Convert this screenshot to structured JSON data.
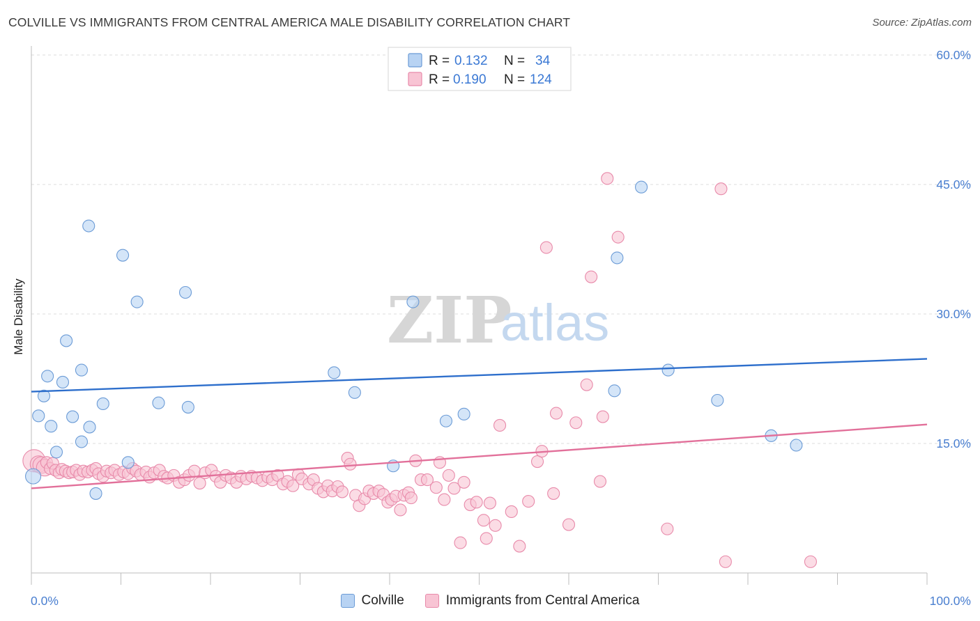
{
  "header": {
    "title": "COLVILLE VS IMMIGRANTS FROM CENTRAL AMERICA MALE DISABILITY CORRELATION CHART",
    "source": "Source: ZipAtlas.com"
  },
  "watermark": {
    "zip": "ZIP",
    "atlas": "atlas"
  },
  "colors": {
    "colville_fill": "#b8d3f3",
    "colville_stroke": "#6b9bd6",
    "colville_line": "#2e6fcc",
    "immigrants_fill": "#f8c4d4",
    "immigrants_stroke": "#e88aaa",
    "immigrants_line": "#e2709a",
    "tick_label": "#4a7fd0",
    "grid": "#dcdcdc"
  },
  "legend": {
    "r_label": "R =",
    "n_label": "N =",
    "rows": [
      {
        "series": "Colville",
        "r": "0.132",
        "n": "34"
      },
      {
        "series": "Immigrants from Central America",
        "r": "0.190",
        "n": "124"
      }
    ]
  },
  "chart_data": {
    "type": "scatter",
    "title": "COLVILLE VS IMMIGRANTS FROM CENTRAL AMERICA MALE DISABILITY CORRELATION CHART",
    "xlabel": "",
    "ylabel": "Male Disability",
    "xlim": [
      0,
      100
    ],
    "ylim": [
      0,
      60
    ],
    "x_tick_labels": [
      "0.0%",
      "100.0%"
    ],
    "y_ticks": [
      15,
      30,
      45,
      60
    ],
    "y_tick_labels": [
      "15.0%",
      "30.0%",
      "45.0%",
      "60.0%"
    ],
    "grid": "horizontal dashed",
    "legend_position": "top-center",
    "series": [
      {
        "name": "Colville",
        "r": 0.132,
        "n": 34,
        "trend": {
          "x": [
            0,
            100
          ],
          "y": [
            21.0,
            24.8
          ]
        },
        "points": [
          [
            0.2,
            11.2
          ],
          [
            0.8,
            18.2
          ],
          [
            1.4,
            20.5
          ],
          [
            1.8,
            22.8
          ],
          [
            2.2,
            17.0
          ],
          [
            2.8,
            14.0
          ],
          [
            3.5,
            22.1
          ],
          [
            3.9,
            26.9
          ],
          [
            4.6,
            18.1
          ],
          [
            5.6,
            23.5
          ],
          [
            5.6,
            15.2
          ],
          [
            6.5,
            16.9
          ],
          [
            6.4,
            40.2
          ],
          [
            7.2,
            9.2
          ],
          [
            8.0,
            19.6
          ],
          [
            10.2,
            36.8
          ],
          [
            10.8,
            12.8
          ],
          [
            11.8,
            31.4
          ],
          [
            14.2,
            19.7
          ],
          [
            17.2,
            32.5
          ],
          [
            17.5,
            19.2
          ],
          [
            33.8,
            23.2
          ],
          [
            36.1,
            20.9
          ],
          [
            40.4,
            12.4
          ],
          [
            42.6,
            31.4
          ],
          [
            46.3,
            17.6
          ],
          [
            48.3,
            18.4
          ],
          [
            65.4,
            36.5
          ],
          [
            65.1,
            21.1
          ],
          [
            68.1,
            44.7
          ],
          [
            71.1,
            23.5
          ],
          [
            76.6,
            20.0
          ],
          [
            82.6,
            15.9
          ],
          [
            85.4,
            14.8
          ]
        ]
      },
      {
        "name": "Immigrants from Central America",
        "r": 0.19,
        "n": 124,
        "trend": {
          "x": [
            0,
            100
          ],
          "y": [
            9.8,
            17.2
          ]
        },
        "points": [
          [
            0.3,
            13.0
          ],
          [
            0.8,
            12.6
          ],
          [
            1.1,
            12.5
          ],
          [
            1.5,
            12.2
          ],
          [
            1.7,
            12.8
          ],
          [
            2.1,
            12.1
          ],
          [
            2.4,
            12.7
          ],
          [
            2.7,
            11.9
          ],
          [
            3.1,
            11.6
          ],
          [
            3.4,
            12.0
          ],
          [
            3.8,
            11.8
          ],
          [
            4.2,
            11.6
          ],
          [
            4.6,
            11.7
          ],
          [
            5.0,
            11.9
          ],
          [
            5.4,
            11.4
          ],
          [
            5.8,
            11.8
          ],
          [
            6.3,
            11.7
          ],
          [
            6.8,
            11.9
          ],
          [
            7.2,
            12.1
          ],
          [
            7.5,
            11.5
          ],
          [
            8.0,
            11.2
          ],
          [
            8.4,
            11.8
          ],
          [
            8.9,
            11.6
          ],
          [
            9.3,
            11.9
          ],
          [
            9.8,
            11.4
          ],
          [
            10.3,
            11.7
          ],
          [
            10.8,
            11.5
          ],
          [
            11.3,
            12.1
          ],
          [
            11.7,
            11.8
          ],
          [
            12.2,
            11.4
          ],
          [
            12.8,
            11.7
          ],
          [
            13.2,
            11.1
          ],
          [
            13.7,
            11.6
          ],
          [
            14.3,
            11.9
          ],
          [
            14.8,
            11.2
          ],
          [
            15.2,
            11.0
          ],
          [
            15.9,
            11.3
          ],
          [
            16.5,
            10.5
          ],
          [
            17.1,
            10.8
          ],
          [
            17.6,
            11.3
          ],
          [
            18.2,
            11.8
          ],
          [
            18.8,
            10.4
          ],
          [
            19.4,
            11.6
          ],
          [
            20.1,
            11.9
          ],
          [
            20.6,
            11.2
          ],
          [
            21.1,
            10.5
          ],
          [
            21.7,
            11.3
          ],
          [
            22.3,
            11.0
          ],
          [
            22.9,
            10.5
          ],
          [
            23.4,
            11.2
          ],
          [
            24.0,
            10.9
          ],
          [
            24.6,
            11.2
          ],
          [
            25.2,
            11.0
          ],
          [
            25.8,
            10.7
          ],
          [
            26.4,
            11.1
          ],
          [
            26.9,
            10.8
          ],
          [
            27.5,
            11.3
          ],
          [
            28.1,
            10.3
          ],
          [
            28.6,
            10.6
          ],
          [
            29.2,
            10.1
          ],
          [
            29.8,
            11.4
          ],
          [
            30.2,
            10.9
          ],
          [
            31.0,
            10.3
          ],
          [
            31.5,
            10.8
          ],
          [
            32.0,
            9.8
          ],
          [
            32.6,
            9.4
          ],
          [
            33.1,
            10.1
          ],
          [
            33.6,
            9.5
          ],
          [
            34.2,
            10.0
          ],
          [
            34.7,
            9.4
          ],
          [
            35.3,
            13.3
          ],
          [
            35.6,
            12.6
          ],
          [
            36.2,
            9.0
          ],
          [
            36.6,
            7.8
          ],
          [
            37.2,
            8.6
          ],
          [
            37.7,
            9.5
          ],
          [
            38.2,
            9.2
          ],
          [
            38.8,
            9.5
          ],
          [
            39.3,
            9.1
          ],
          [
            39.8,
            8.2
          ],
          [
            40.2,
            8.5
          ],
          [
            40.7,
            8.9
          ],
          [
            41.2,
            7.3
          ],
          [
            41.6,
            9.0
          ],
          [
            42.1,
            9.3
          ],
          [
            42.4,
            8.7
          ],
          [
            42.9,
            13.0
          ],
          [
            43.5,
            10.8
          ],
          [
            44.2,
            10.8
          ],
          [
            45.2,
            9.9
          ],
          [
            45.6,
            12.8
          ],
          [
            46.1,
            8.5
          ],
          [
            46.6,
            11.3
          ],
          [
            47.2,
            9.8
          ],
          [
            47.9,
            3.5
          ],
          [
            48.3,
            10.5
          ],
          [
            49.0,
            7.9
          ],
          [
            49.7,
            8.2
          ],
          [
            50.5,
            6.1
          ],
          [
            50.8,
            4.0
          ],
          [
            51.2,
            8.1
          ],
          [
            51.8,
            5.5
          ],
          [
            52.3,
            17.1
          ],
          [
            53.6,
            7.1
          ],
          [
            54.5,
            3.1
          ],
          [
            55.5,
            8.3
          ],
          [
            56.5,
            12.9
          ],
          [
            57.0,
            14.1
          ],
          [
            57.5,
            37.7
          ],
          [
            58.3,
            9.2
          ],
          [
            58.6,
            18.5
          ],
          [
            60.0,
            5.6
          ],
          [
            60.8,
            17.4
          ],
          [
            62.0,
            21.8
          ],
          [
            62.5,
            34.3
          ],
          [
            63.5,
            10.6
          ],
          [
            63.8,
            18.1
          ],
          [
            64.3,
            45.7
          ],
          [
            65.5,
            38.9
          ],
          [
            71.0,
            5.1
          ],
          [
            77.0,
            44.5
          ],
          [
            77.5,
            1.3
          ],
          [
            87.0,
            1.3
          ]
        ]
      }
    ]
  }
}
